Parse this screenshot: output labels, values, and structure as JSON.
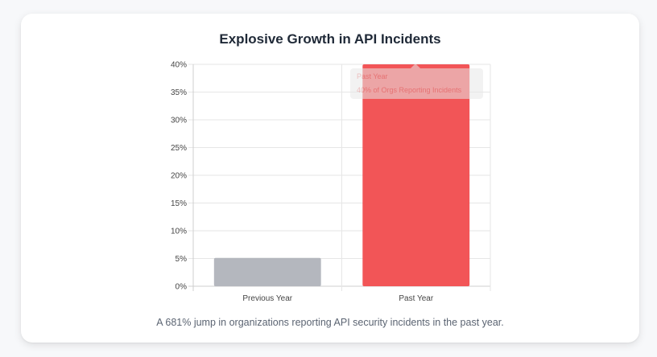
{
  "title": "Explosive Growth in API Incidents",
  "caption": "A 681% jump in organizations reporting API security incidents in the past year.",
  "colors": {
    "previous_bar": "#b4b7be",
    "past_bar": "#f25557",
    "grid": "#e6e6e6",
    "tooltip_bg": "#e8e8e8"
  },
  "tooltip": {
    "title": "Past Year",
    "body": "40% of Orgs Reporting Incidents"
  },
  "chart_data": {
    "type": "bar",
    "title": "Explosive Growth in API Incidents",
    "categories": [
      "Previous Year",
      "Past Year"
    ],
    "values": [
      5.1,
      40
    ],
    "ylim": [
      0,
      40
    ],
    "yticks": [
      "0%",
      "5%",
      "10%",
      "15%",
      "20%",
      "25%",
      "30%",
      "35%",
      "40%"
    ],
    "ytick_values": [
      0,
      5,
      10,
      15,
      20,
      25,
      30,
      35,
      40
    ],
    "grid": true,
    "xlabel": "",
    "ylabel": ""
  }
}
